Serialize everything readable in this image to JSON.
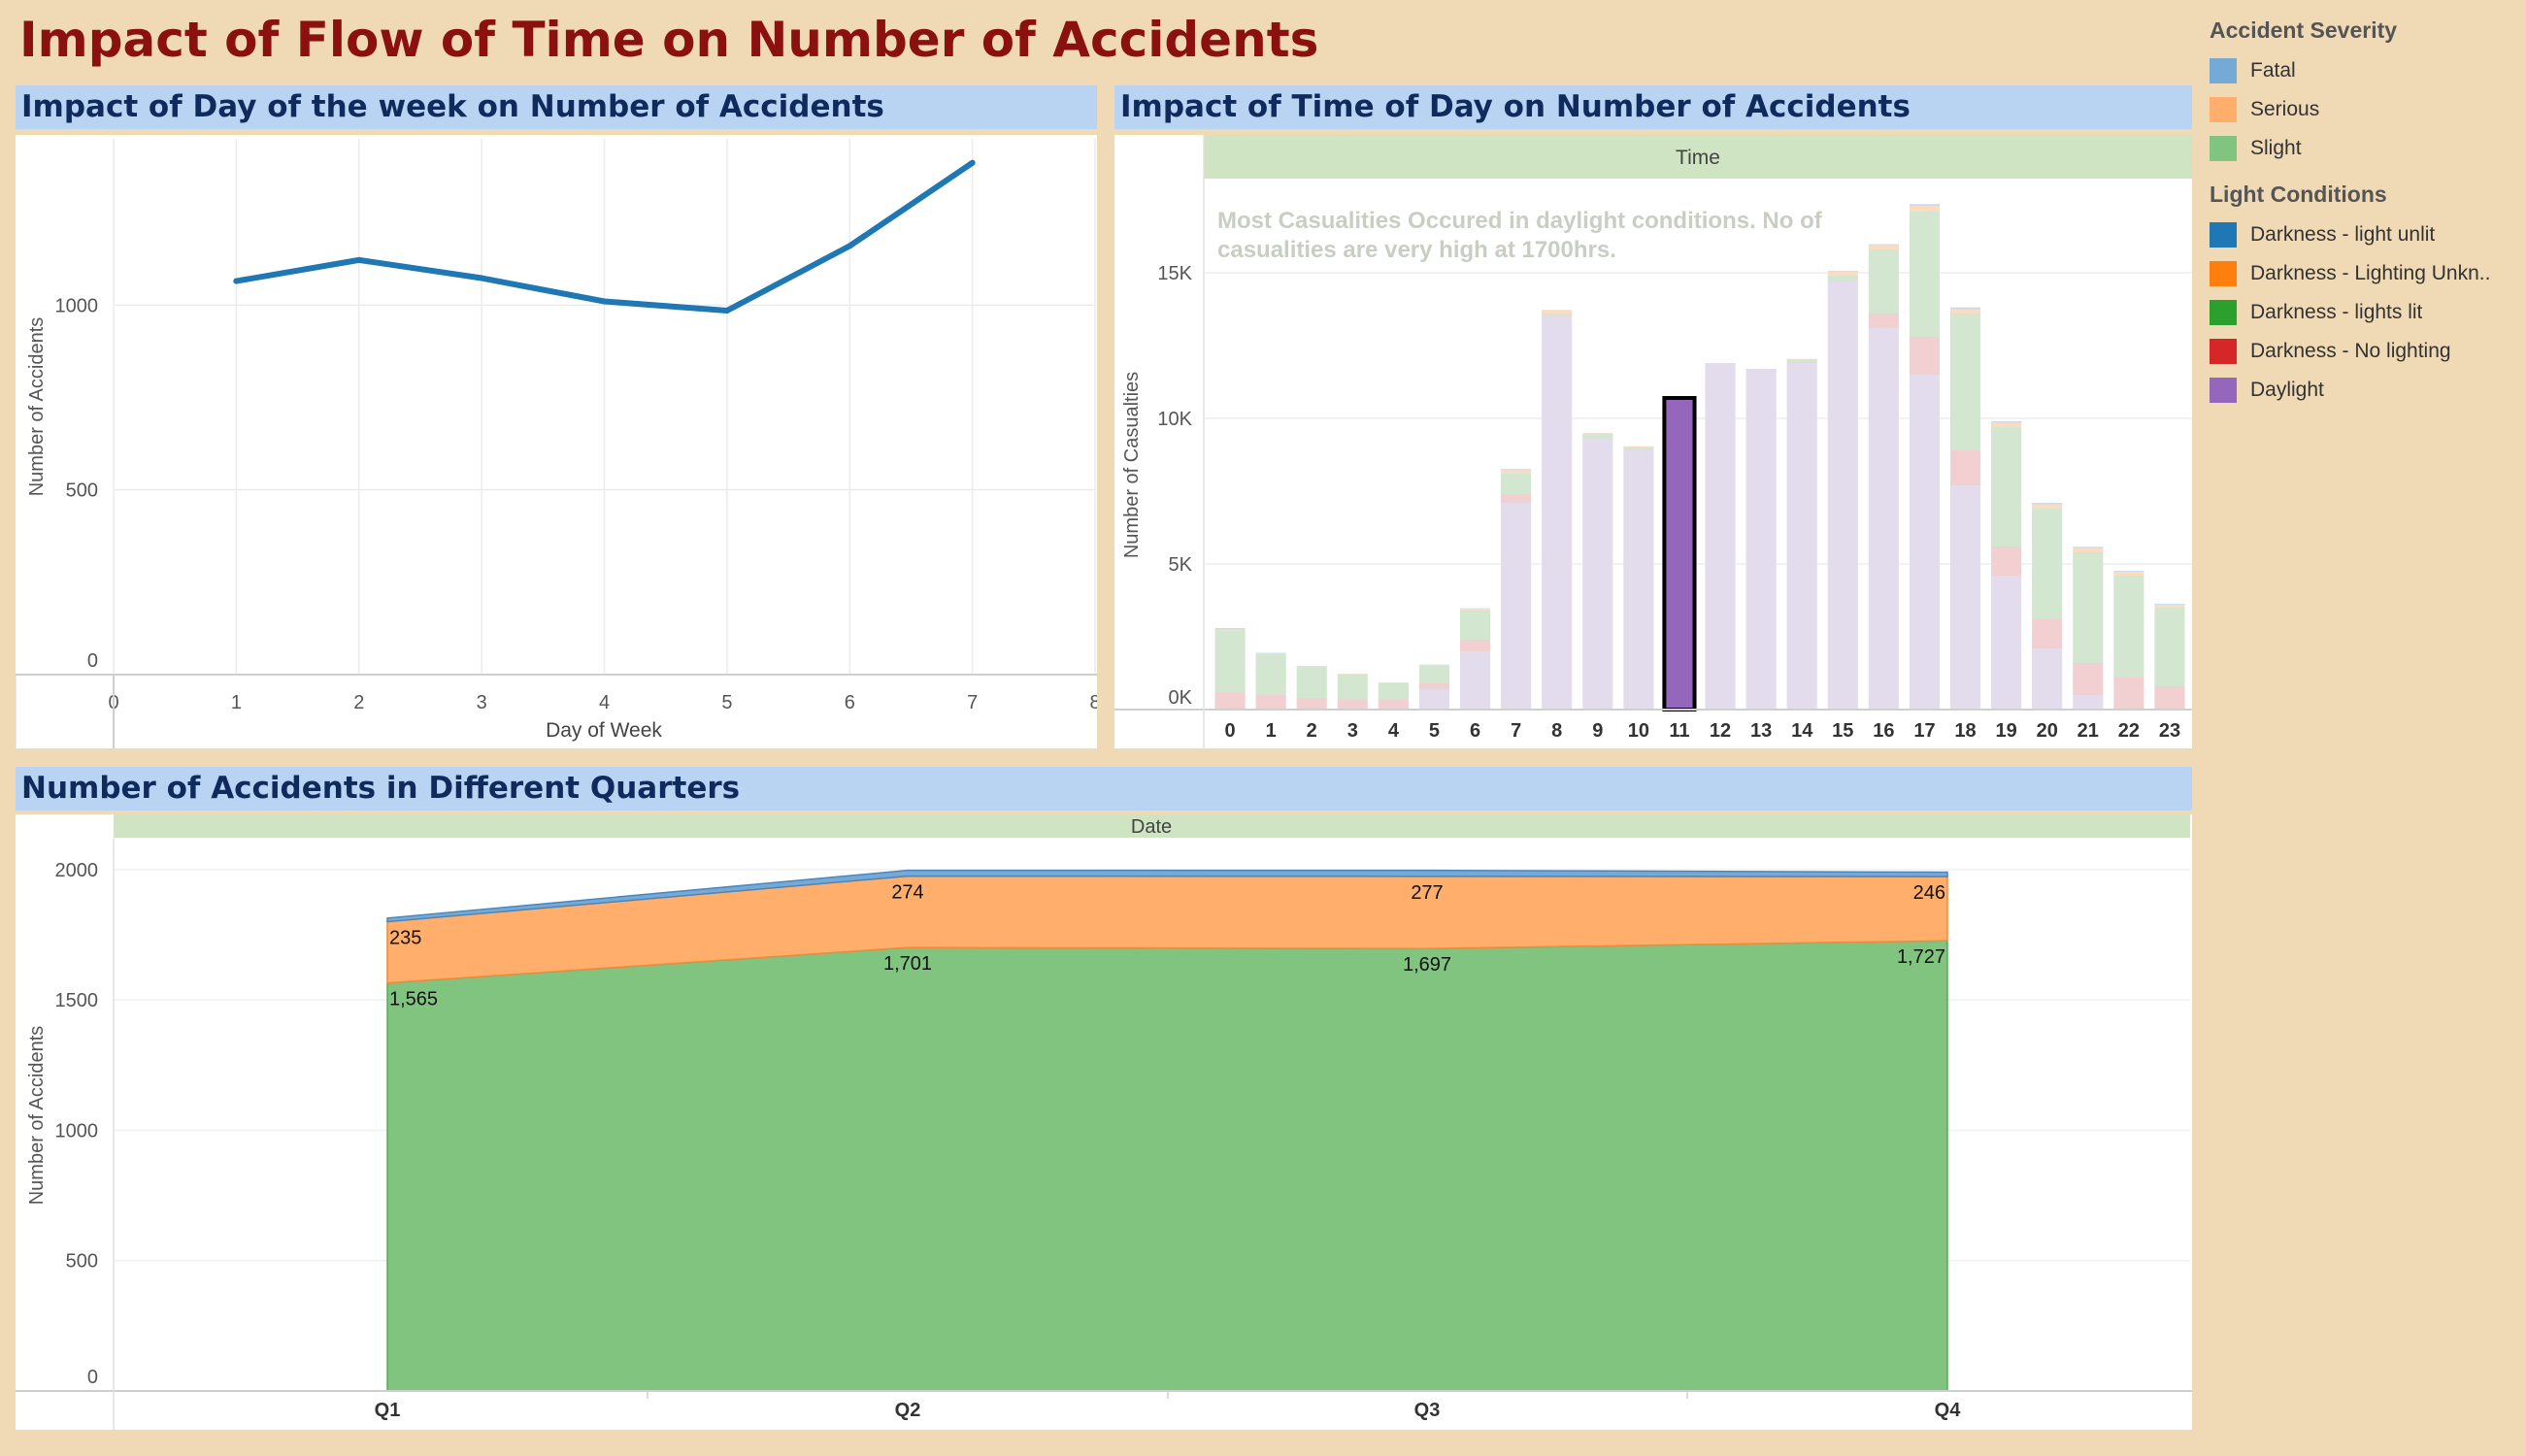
{
  "dashboard": {
    "title": "Impact of Flow of Time on Number of Accidents"
  },
  "colors": {
    "fatal": "#76aad6",
    "serious": "#ffae6b",
    "slight": "#80c47f",
    "darkness_light_unlit": "#1f77b4",
    "darkness_lighting_unknown": "#ff7f0e",
    "darkness_lights_lit": "#2ca02c",
    "darkness_no_lighting": "#d62728",
    "daylight": "#9467bd",
    "line": "#1f77b4"
  },
  "legend": {
    "severity_title": "Accident Severity",
    "severity_items": [
      {
        "label": "Fatal",
        "color": "#76aad6"
      },
      {
        "label": "Serious",
        "color": "#ffae6b"
      },
      {
        "label": "Slight",
        "color": "#80c47f"
      }
    ],
    "light_title": "Light Conditions",
    "light_items": [
      {
        "label": "Darkness - light unlit",
        "color": "#1f77b4"
      },
      {
        "label": "Darkness - Lighting Unkn..",
        "color": "#ff7f0e"
      },
      {
        "label": "Darkness - lights lit",
        "color": "#2ca02c"
      },
      {
        "label": "Darkness - No lighting",
        "color": "#d62728"
      },
      {
        "label": "Daylight",
        "color": "#9467bd"
      }
    ]
  },
  "panels": {
    "day_title": "Impact of Day of the week on Number of Accidents",
    "time_title": "Impact of Time of Day on Number of Accidents",
    "quarter_title": "Number of Accidents in Different Quarters"
  },
  "chart_data": [
    {
      "type": "line",
      "title": "Impact of Day of the week on Number of Accidents",
      "xlabel": "Day of Week",
      "ylabel": "Number of Accidents",
      "x": [
        1,
        2,
        3,
        4,
        5,
        6,
        7
      ],
      "values": [
        1065,
        1122,
        1073,
        1010,
        985,
        1160,
        1385
      ],
      "xlim": [
        0,
        8
      ],
      "ylim": [
        0,
        1450
      ],
      "xticks": [
        "0",
        "1",
        "2",
        "3",
        "4",
        "5",
        "6",
        "7",
        "8"
      ],
      "yticks": [
        0,
        500,
        1000
      ],
      "ytick_labels": [
        "0",
        "500",
        "1000"
      ],
      "grid": true
    },
    {
      "type": "bar",
      "stacked": true,
      "title": "Impact of Time of Day on Number of Accidents",
      "header": "Time",
      "ylabel": "Number of Casualties",
      "annotation": "Most Casualities Occured in daylight conditions. No of casualities are very high at 1700hrs.",
      "categories": [
        "0",
        "1",
        "2",
        "3",
        "4",
        "5",
        "6",
        "7",
        "8",
        "9",
        "10",
        "11",
        "12",
        "13",
        "14",
        "15",
        "16",
        "17",
        "18",
        "19",
        "20",
        "21",
        "22",
        "23"
      ],
      "ylim": [
        0,
        18200
      ],
      "yticks": [
        0,
        5000,
        10000,
        15000
      ],
      "ytick_labels": [
        "0K",
        "5K",
        "10K",
        "15K"
      ],
      "highlighted_category": "11",
      "series": [
        {
          "name": "Daylight",
          "values": [
            0,
            0,
            0,
            0,
            0,
            700,
            2000,
            7100,
            13500,
            9300,
            8900,
            10700,
            11900,
            11700,
            11900,
            14700,
            13100,
            11500,
            7700,
            4600,
            2100,
            500,
            0,
            0
          ]
        },
        {
          "name": "Darkness - No lighting",
          "values": [
            600,
            500,
            400,
            350,
            350,
            200,
            400,
            300,
            0,
            0,
            0,
            0,
            0,
            0,
            0,
            0,
            500,
            1300,
            1200,
            1000,
            1000,
            1100,
            1100,
            800
          ]
        },
        {
          "name": "Darkness - lights lit",
          "values": [
            2100,
            1400,
            1050,
            850,
            550,
            600,
            1000,
            700,
            100,
            150,
            100,
            0,
            0,
            0,
            100,
            200,
            2200,
            4300,
            4700,
            4100,
            3800,
            3800,
            3500,
            2700
          ]
        },
        {
          "name": "Darkness - Lighting Unknown",
          "values": [
            50,
            30,
            30,
            20,
            20,
            40,
            60,
            120,
            100,
            40,
            30,
            0,
            0,
            0,
            20,
            150,
            150,
            200,
            150,
            150,
            150,
            150,
            130,
            100
          ]
        },
        {
          "name": "Darkness - light unlit",
          "values": [
            50,
            20,
            20,
            10,
            10,
            10,
            20,
            40,
            20,
            10,
            10,
            0,
            0,
            0,
            20,
            20,
            30,
            60,
            60,
            50,
            50,
            40,
            40,
            30
          ]
        }
      ]
    },
    {
      "type": "area",
      "stacked": true,
      "title": "Number of Accidents in Different Quarters",
      "header": "Date",
      "ylabel": "Number of Accidents",
      "categories": [
        "Q1",
        "Q2",
        "Q3",
        "Q4"
      ],
      "ylim": [
        0,
        2100
      ],
      "yticks": [
        0,
        500,
        1000,
        1500,
        2000
      ],
      "ytick_labels": [
        "0",
        "500",
        "1000",
        "1500",
        "2000"
      ],
      "series": [
        {
          "name": "Slight",
          "values": [
            1565,
            1701,
            1697,
            1727
          ],
          "labels": [
            "1,565",
            "1,701",
            "1,697",
            "1,727"
          ]
        },
        {
          "name": "Serious",
          "values": [
            235,
            274,
            277,
            246
          ],
          "labels": [
            "235",
            "274",
            "277",
            "246"
          ]
        },
        {
          "name": "Fatal",
          "values": [
            14,
            22,
            23,
            17
          ]
        }
      ]
    }
  ]
}
